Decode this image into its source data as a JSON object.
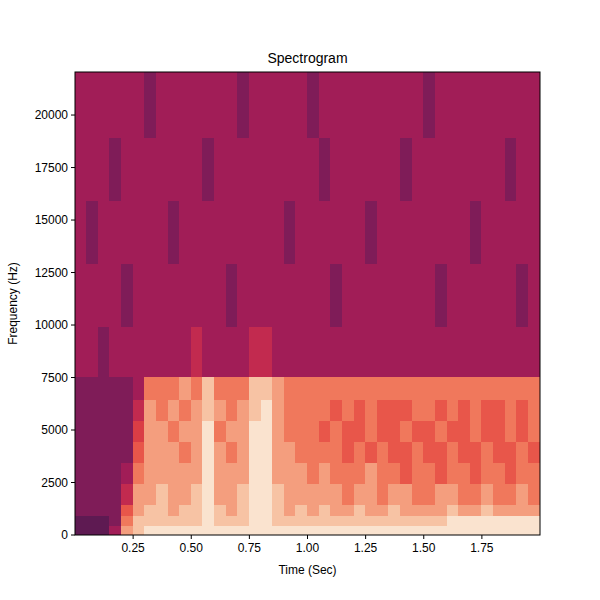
{
  "chart_data": {
    "type": "heatmap",
    "title": "Spectrogram",
    "x_label": "Time (Sec)",
    "y_label": "Frequency (Hz)",
    "xlim": [
      0,
      2.0
    ],
    "ylim": [
      0,
      22050
    ],
    "xticks": [
      {
        "value": 0.25,
        "label": "0.25"
      },
      {
        "value": 0.5,
        "label": "0.50"
      },
      {
        "value": 0.75,
        "label": "0.75"
      },
      {
        "value": 1.0,
        "label": "1.00"
      },
      {
        "value": 1.25,
        "label": "1.25"
      },
      {
        "value": 1.5,
        "label": "1.50"
      },
      {
        "value": 1.75,
        "label": "1.75"
      }
    ],
    "yticks": [
      0,
      2500,
      5000,
      7500,
      10000,
      12500,
      15000,
      17500,
      20000
    ],
    "clim": [
      0,
      9
    ],
    "time_bins": [
      0,
      0.05,
      0.1,
      0.15,
      0.2,
      0.25,
      0.3,
      0.35,
      0.4,
      0.45,
      0.5,
      0.55,
      0.6,
      0.65,
      0.7,
      0.75,
      0.8,
      0.85,
      0.9,
      0.95,
      1.0,
      1.05,
      1.1,
      1.15,
      1.2,
      1.25,
      1.3,
      1.35,
      1.4,
      1.45,
      1.5,
      1.55,
      1.6,
      1.65,
      1.7,
      1.75,
      1.8,
      1.85,
      1.9,
      1.95,
      2.0
    ],
    "frequency_bins": [
      0,
      500,
      1000,
      1500,
      2500,
      3500,
      4500,
      5500,
      6500,
      7600,
      10000,
      13000,
      16000,
      19000,
      22050
    ],
    "cells": [
      [
        0,
        0,
        0,
        2,
        7,
        8,
        9,
        9,
        9,
        9,
        9,
        9,
        9,
        9,
        9,
        9,
        9,
        9,
        9,
        9,
        9,
        9,
        9,
        9,
        9,
        9,
        9,
        9,
        9,
        9,
        9,
        9,
        9,
        9,
        9,
        9,
        9,
        9,
        9,
        9
      ],
      [
        0,
        0,
        0,
        1,
        6,
        8,
        8,
        8,
        8,
        8,
        8,
        9,
        8,
        8,
        8,
        9,
        9,
        8,
        8,
        8,
        8,
        8,
        8,
        8,
        8,
        8,
        8,
        8,
        8,
        8,
        8,
        8,
        9,
        9,
        9,
        9,
        9,
        9,
        9,
        9
      ],
      [
        1,
        1,
        1,
        1,
        5,
        7,
        8,
        8,
        7,
        8,
        8,
        9,
        8,
        7,
        8,
        9,
        9,
        8,
        7,
        8,
        7,
        8,
        7,
        7,
        8,
        7,
        7,
        8,
        7,
        7,
        7,
        7,
        8,
        7,
        7,
        8,
        7,
        7,
        7,
        7
      ],
      [
        1,
        1,
        1,
        1,
        3,
        7,
        7,
        8,
        7,
        7,
        8,
        9,
        7,
        7,
        8,
        9,
        9,
        8,
        7,
        7,
        7,
        7,
        7,
        6,
        7,
        7,
        6,
        7,
        7,
        6,
        6,
        7,
        7,
        6,
        6,
        7,
        6,
        6,
        7,
        6
      ],
      [
        1,
        1,
        1,
        1,
        2,
        6,
        7,
        7,
        7,
        7,
        7,
        9,
        7,
        7,
        7,
        9,
        9,
        7,
        7,
        7,
        6,
        7,
        6,
        6,
        6,
        7,
        6,
        6,
        5,
        6,
        6,
        5,
        6,
        6,
        5,
        6,
        6,
        5,
        6,
        6
      ],
      [
        1,
        1,
        1,
        1,
        1,
        5,
        7,
        7,
        7,
        6,
        7,
        9,
        7,
        6,
        7,
        9,
        9,
        7,
        7,
        6,
        6,
        6,
        6,
        5,
        6,
        5,
        6,
        5,
        5,
        6,
        5,
        5,
        6,
        5,
        5,
        6,
        5,
        5,
        6,
        5
      ],
      [
        1,
        1,
        1,
        1,
        1,
        4,
        7,
        7,
        6,
        7,
        7,
        9,
        6,
        7,
        7,
        9,
        9,
        7,
        6,
        6,
        6,
        5,
        6,
        5,
        5,
        6,
        5,
        5,
        6,
        5,
        5,
        6,
        5,
        5,
        6,
        5,
        5,
        6,
        5,
        6
      ],
      [
        1,
        1,
        1,
        1,
        1,
        3,
        7,
        6,
        7,
        6,
        7,
        8,
        7,
        6,
        7,
        8,
        9,
        7,
        6,
        6,
        6,
        6,
        5,
        6,
        5,
        6,
        5,
        5,
        5,
        6,
        6,
        5,
        6,
        5,
        6,
        5,
        5,
        6,
        5,
        6
      ],
      [
        1,
        1,
        1,
        1,
        1,
        2,
        6,
        6,
        6,
        7,
        6,
        8,
        6,
        6,
        6,
        8,
        8,
        7,
        6,
        6,
        6,
        6,
        6,
        6,
        6,
        6,
        6,
        6,
        6,
        6,
        6,
        6,
        6,
        6,
        6,
        6,
        6,
        6,
        6,
        6
      ],
      [
        2,
        2,
        1,
        2,
        2,
        2,
        2,
        2,
        2,
        2,
        3,
        2,
        2,
        2,
        2,
        3,
        3,
        2,
        2,
        2,
        2,
        2,
        2,
        2,
        2,
        2,
        2,
        2,
        2,
        2,
        2,
        2,
        2,
        2,
        2,
        2,
        2,
        2,
        2,
        2
      ],
      [
        2,
        2,
        2,
        2,
        1,
        2,
        2,
        2,
        2,
        2,
        2,
        2,
        2,
        1,
        2,
        2,
        2,
        2,
        2,
        2,
        2,
        2,
        1,
        2,
        2,
        2,
        2,
        2,
        2,
        2,
        2,
        1,
        2,
        2,
        2,
        2,
        2,
        2,
        1,
        2
      ],
      [
        2,
        1,
        2,
        2,
        2,
        2,
        2,
        2,
        1,
        2,
        2,
        2,
        2,
        2,
        2,
        2,
        2,
        2,
        1,
        2,
        2,
        2,
        2,
        2,
        2,
        1,
        2,
        2,
        2,
        2,
        2,
        2,
        2,
        2,
        1,
        2,
        2,
        2,
        2,
        2
      ],
      [
        2,
        2,
        2,
        1,
        2,
        2,
        2,
        2,
        2,
        2,
        2,
        1,
        2,
        2,
        2,
        2,
        2,
        2,
        2,
        2,
        2,
        1,
        2,
        2,
        2,
        2,
        2,
        2,
        1,
        2,
        2,
        2,
        2,
        2,
        2,
        2,
        2,
        1,
        2,
        2
      ],
      [
        2,
        2,
        2,
        2,
        2,
        2,
        1,
        2,
        2,
        2,
        2,
        2,
        2,
        2,
        1,
        2,
        2,
        2,
        2,
        2,
        1,
        2,
        2,
        2,
        2,
        2,
        2,
        2,
        2,
        2,
        1,
        2,
        2,
        2,
        2,
        2,
        2,
        2,
        2,
        2
      ]
    ]
  }
}
